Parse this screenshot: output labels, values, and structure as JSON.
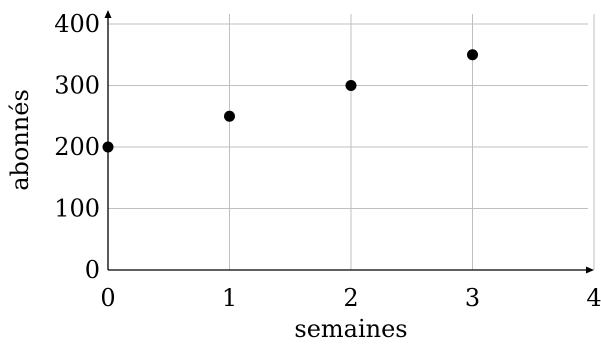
{
  "chart_data": {
    "type": "scatter",
    "xlabel": "semaines",
    "ylabel": "abonnés",
    "xlim": [
      0,
      4
    ],
    "ylim": [
      0,
      400
    ],
    "xticks": [
      "0",
      "1",
      "2",
      "3",
      "4"
    ],
    "yticks": [
      "0",
      "100",
      "200",
      "300",
      "400"
    ],
    "grid": true,
    "points": [
      {
        "x": 0,
        "y": 200
      },
      {
        "x": 1,
        "y": 250
      },
      {
        "x": 2,
        "y": 300
      },
      {
        "x": 3,
        "y": 350
      }
    ],
    "colors": {
      "points": "#000000",
      "grid": "#bfbfbf",
      "axis": "#000000"
    }
  }
}
